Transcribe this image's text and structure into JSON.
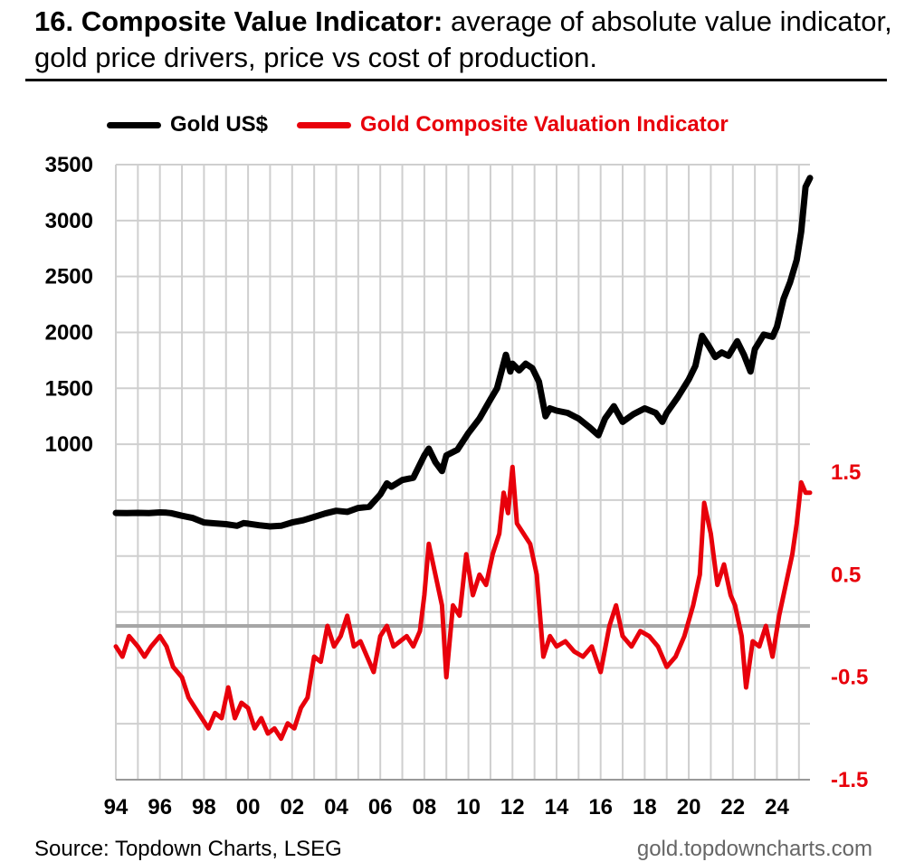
{
  "header": {
    "title_bold": "16. Composite Value Indicator:",
    "title_rest": " average of absolute value indicator, gold price drivers, price vs cost of production."
  },
  "footer": {
    "source": "Source: Topdown Charts, LSEG",
    "site": "gold.topdowncharts.com"
  },
  "colors": {
    "gold": "#000000",
    "indicator": "#e8000b",
    "grid": "#cfcfcf",
    "zero": "#a6a6a6"
  },
  "chart_data": {
    "type": "line",
    "title": "",
    "legend_position": "top",
    "grid": true,
    "x_ticks": [
      "94",
      "96",
      "98",
      "00",
      "02",
      "04",
      "06",
      "08",
      "10",
      "12",
      "14",
      "16",
      "18",
      "20",
      "22",
      "24"
    ],
    "xlim": [
      1994,
      2025.5
    ],
    "left_axis": {
      "ticks": [
        "3500",
        "3000",
        "2500",
        "2000",
        "1500",
        "1000"
      ],
      "ylim": [
        -2000,
        3500
      ],
      "visible_range": [
        1000,
        3500
      ]
    },
    "right_axis": {
      "ticks": [
        "1.5",
        "0.5",
        "-0.5",
        "-1.5"
      ],
      "ylim": [
        -1.5,
        4.5
      ],
      "visible_range": [
        -1.5,
        1.5
      ]
    },
    "series": [
      {
        "name": "Gold US$",
        "axis": "left",
        "color": "#000000",
        "x": [
          1994.0,
          1994.5,
          1995.0,
          1995.5,
          1996.0,
          1996.3,
          1996.5,
          1997.0,
          1997.5,
          1998.0,
          1998.5,
          1999.0,
          1999.5,
          1999.8,
          2000.0,
          2000.5,
          2001.0,
          2001.5,
          2002.0,
          2002.5,
          2003.0,
          2003.5,
          2004.0,
          2004.5,
          2005.0,
          2005.5,
          2006.0,
          2006.3,
          2006.5,
          2007.0,
          2007.5,
          2008.0,
          2008.2,
          2008.5,
          2008.8,
          2009.0,
          2009.5,
          2010.0,
          2010.5,
          2011.0,
          2011.3,
          2011.7,
          2011.9,
          2012.0,
          2012.3,
          2012.6,
          2012.9,
          2013.2,
          2013.5,
          2013.7,
          2014.0,
          2014.5,
          2015.0,
          2015.5,
          2015.9,
          2016.2,
          2016.6,
          2017.0,
          2017.5,
          2018.0,
          2018.5,
          2018.8,
          2019.0,
          2019.5,
          2020.0,
          2020.3,
          2020.6,
          2020.9,
          2021.2,
          2021.5,
          2021.8,
          2022.2,
          2022.5,
          2022.8,
          2023.0,
          2023.4,
          2023.8,
          2024.0,
          2024.3,
          2024.6,
          2024.9,
          2025.1,
          2025.3,
          2025.5
        ],
        "values": [
          385,
          384,
          386,
          384,
          390,
          388,
          384,
          360,
          340,
          300,
          292,
          285,
          270,
          295,
          290,
          275,
          265,
          270,
          300,
          320,
          350,
          380,
          405,
          395,
          430,
          440,
          550,
          650,
          620,
          680,
          700,
          900,
          960,
          840,
          760,
          900,
          950,
          1100,
          1230,
          1400,
          1500,
          1800,
          1650,
          1720,
          1660,
          1720,
          1680,
          1560,
          1250,
          1320,
          1300,
          1280,
          1230,
          1150,
          1080,
          1230,
          1340,
          1200,
          1270,
          1320,
          1280,
          1200,
          1280,
          1420,
          1580,
          1700,
          1970,
          1880,
          1780,
          1820,
          1790,
          1920,
          1800,
          1650,
          1850,
          1980,
          1960,
          2050,
          2300,
          2450,
          2650,
          2900,
          3300,
          3380
        ]
      },
      {
        "name": "Gold Composite Valuation Indicator",
        "axis": "right",
        "color": "#e8000b",
        "x": [
          1994.0,
          1994.3,
          1994.6,
          1995.0,
          1995.3,
          1995.6,
          1996.0,
          1996.3,
          1996.6,
          1997.0,
          1997.3,
          1997.6,
          1997.9,
          1998.2,
          1998.5,
          1998.8,
          1999.1,
          1999.4,
          1999.7,
          2000.0,
          2000.3,
          2000.6,
          2000.9,
          2001.2,
          2001.5,
          2001.8,
          2002.1,
          2002.4,
          2002.7,
          2003.0,
          2003.3,
          2003.6,
          2003.9,
          2004.2,
          2004.5,
          2004.8,
          2005.1,
          2005.4,
          2005.7,
          2006.0,
          2006.3,
          2006.6,
          2006.9,
          2007.2,
          2007.5,
          2007.8,
          2008.0,
          2008.2,
          2008.5,
          2008.8,
          2009.0,
          2009.3,
          2009.6,
          2009.9,
          2010.2,
          2010.5,
          2010.8,
          2011.1,
          2011.4,
          2011.6,
          2011.8,
          2012.0,
          2012.2,
          2012.5,
          2012.8,
          2013.1,
          2013.4,
          2013.7,
          2014.0,
          2014.4,
          2014.8,
          2015.2,
          2015.6,
          2016.0,
          2016.4,
          2016.7,
          2017.0,
          2017.4,
          2017.8,
          2018.2,
          2018.6,
          2019.0,
          2019.4,
          2019.8,
          2020.2,
          2020.5,
          2020.7,
          2021.0,
          2021.3,
          2021.6,
          2021.9,
          2022.1,
          2022.4,
          2022.6,
          2022.9,
          2023.2,
          2023.5,
          2023.8,
          2024.1,
          2024.4,
          2024.7,
          2024.9,
          2025.1,
          2025.3,
          2025.5
        ],
        "values": [
          -0.2,
          -0.3,
          -0.1,
          -0.2,
          -0.3,
          -0.2,
          -0.1,
          -0.2,
          -0.4,
          -0.5,
          -0.7,
          -0.8,
          -0.9,
          -1.0,
          -0.85,
          -0.9,
          -0.6,
          -0.9,
          -0.75,
          -0.8,
          -1.0,
          -0.9,
          -1.05,
          -1.0,
          -1.1,
          -0.95,
          -1.0,
          -0.8,
          -0.7,
          -0.3,
          -0.35,
          0.0,
          -0.2,
          -0.1,
          0.1,
          -0.2,
          -0.15,
          -0.3,
          -0.45,
          -0.1,
          0.0,
          -0.2,
          -0.15,
          -0.1,
          -0.2,
          -0.05,
          0.3,
          0.8,
          0.5,
          0.2,
          -0.5,
          0.2,
          0.1,
          0.7,
          0.3,
          0.5,
          0.4,
          0.7,
          0.9,
          1.3,
          1.1,
          1.55,
          1.0,
          0.9,
          0.8,
          0.5,
          -0.3,
          -0.1,
          -0.2,
          -0.15,
          -0.25,
          -0.3,
          -0.2,
          -0.45,
          0.0,
          0.2,
          -0.1,
          -0.2,
          -0.05,
          -0.1,
          -0.2,
          -0.4,
          -0.3,
          -0.1,
          0.2,
          0.5,
          1.2,
          0.9,
          0.4,
          0.6,
          0.3,
          0.2,
          -0.1,
          -0.6,
          -0.15,
          -0.2,
          0.0,
          -0.3,
          0.1,
          0.4,
          0.7,
          1.0,
          1.4,
          1.3,
          1.3
        ]
      }
    ]
  }
}
